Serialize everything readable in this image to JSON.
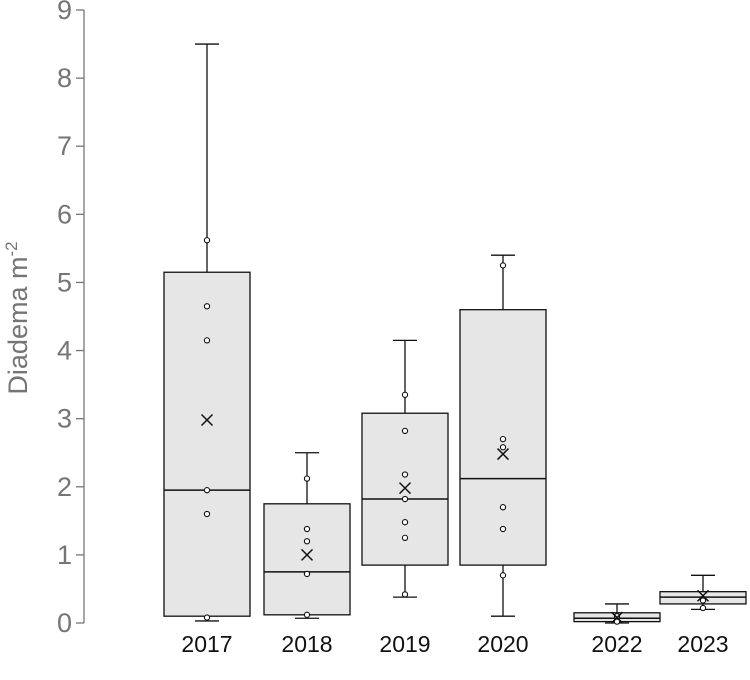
{
  "chart_data": {
    "type": "box",
    "title": "",
    "xlabel": "",
    "ylabel": "Diadema m",
    "ylabel_superscript": "-2",
    "ylim": [
      0,
      9
    ],
    "yticks": [
      0,
      1,
      2,
      3,
      4,
      5,
      6,
      7,
      8,
      9
    ],
    "grid": false,
    "legend": null,
    "colors": {
      "box_fill": "#e6e6e6",
      "box_stroke": "#111111",
      "axis": "#757575",
      "tick_label": "#757575",
      "category_label": "#111111"
    },
    "categories": [
      "2017",
      "2018",
      "2019",
      "2020",
      "2022",
      "2023"
    ],
    "boxes": [
      {
        "category": "2017",
        "whisker_low": 0.03,
        "q1": 0.1,
        "median": 1.95,
        "q3": 5.15,
        "whisker_high": 8.5,
        "mean": 2.98,
        "points": [
          0.08,
          1.6,
          1.95,
          4.15,
          4.65,
          5.62
        ]
      },
      {
        "category": "2018",
        "whisker_low": 0.07,
        "q1": 0.12,
        "median": 0.75,
        "q3": 1.75,
        "whisker_high": 2.5,
        "mean": 1.0,
        "points": [
          0.12,
          0.72,
          1.2,
          1.38,
          2.12
        ]
      },
      {
        "category": "2019",
        "whisker_low": 0.38,
        "q1": 0.85,
        "median": 1.82,
        "q3": 3.08,
        "whisker_high": 4.15,
        "mean": 1.98,
        "points": [
          0.42,
          1.25,
          1.48,
          1.82,
          2.18,
          2.82,
          3.35
        ]
      },
      {
        "category": "2020",
        "whisker_low": 0.1,
        "q1": 0.85,
        "median": 2.12,
        "q3": 4.6,
        "whisker_high": 5.4,
        "mean": 2.48,
        "points": [
          0.7,
          1.38,
          1.7,
          2.58,
          2.7,
          5.25
        ]
      },
      {
        "category": "2022",
        "whisker_low": 0.0,
        "q1": 0.02,
        "median": 0.07,
        "q3": 0.15,
        "whisker_high": 0.28,
        "mean": 0.08,
        "points": [
          0.02,
          0.1
        ]
      },
      {
        "category": "2023",
        "whisker_low": 0.2,
        "q1": 0.28,
        "median": 0.38,
        "q3": 0.46,
        "whisker_high": 0.7,
        "mean": 0.4,
        "points": [
          0.22,
          0.33
        ]
      }
    ]
  }
}
